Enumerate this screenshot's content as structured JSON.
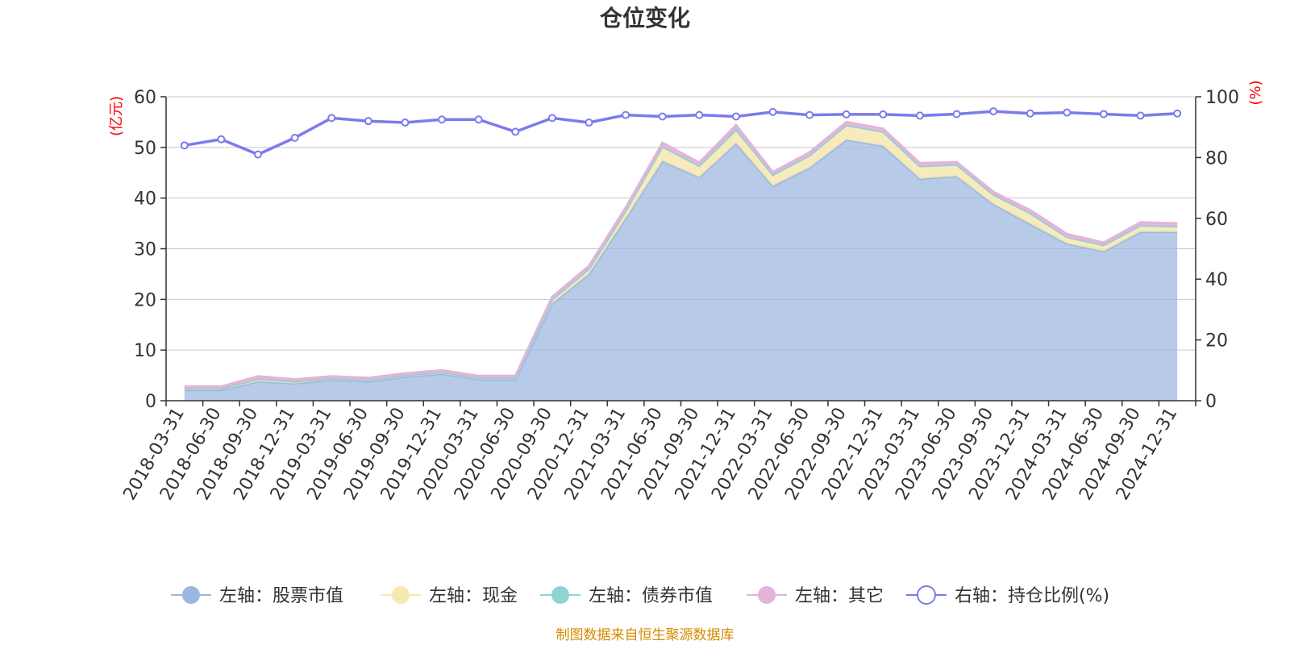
{
  "title": "仓位变化",
  "source_note": "制图数据来自恒生聚源数据库",
  "left_unit": "(亿元)",
  "right_unit": "(%)",
  "colors": {
    "stock": "#9bb7df",
    "cash": "#f6e8b1",
    "bond": "#8fd3d3",
    "other": "#e4b3da",
    "ratio": "#7b7bee",
    "unit": "#ff0000",
    "source": "#d48b00",
    "grid": "#c8c8c8",
    "axis": "#333333"
  },
  "legend": [
    {
      "key": "stock",
      "label": "左轴：股票市值"
    },
    {
      "key": "cash",
      "label": "左轴：现金"
    },
    {
      "key": "bond",
      "label": "左轴：债券市值"
    },
    {
      "key": "other",
      "label": "左轴：其它"
    },
    {
      "key": "ratio",
      "label": "右轴：持仓比例(%)"
    }
  ],
  "chart_data": {
    "type": "area",
    "title": "仓位变化",
    "categories": [
      "2018-03-31",
      "2018-06-30",
      "2018-09-30",
      "2018-12-31",
      "2019-03-31",
      "2019-06-30",
      "2019-09-30",
      "2019-12-31",
      "2020-03-31",
      "2020-06-30",
      "2020-09-30",
      "2020-12-31",
      "2021-03-31",
      "2021-06-30",
      "2021-09-30",
      "2021-12-31",
      "2022-03-31",
      "2022-06-30",
      "2022-09-30",
      "2022-12-31",
      "2023-03-31",
      "2023-06-30",
      "2023-09-30",
      "2023-12-31",
      "2024-03-31",
      "2024-06-30",
      "2024-09-30",
      "2024-12-31"
    ],
    "left_axis": {
      "unit": "亿元",
      "ylim": [
        0,
        60
      ],
      "ticks": [
        0,
        10,
        20,
        30,
        40,
        50,
        60
      ]
    },
    "right_axis": {
      "unit": "%",
      "ylim": [
        0,
        100
      ],
      "ticks": [
        0,
        20,
        40,
        60,
        80,
        100
      ]
    },
    "stacked": true,
    "grid": true,
    "legend_position": "bottom",
    "series": [
      {
        "key": "stock",
        "name": "左轴：股票市值",
        "axis": "left",
        "values": [
          2.1,
          2.1,
          3.8,
          3.4,
          4.1,
          3.8,
          4.7,
          5.3,
          4.2,
          4.2,
          19.2,
          25.0,
          36.0,
          47.3,
          44.1,
          50.8,
          42.4,
          46.0,
          51.5,
          50.3,
          43.8,
          44.3,
          38.8,
          34.9,
          31.0,
          29.5,
          33.3,
          33.3
        ]
      },
      {
        "key": "cash",
        "name": "左轴：现金",
        "axis": "left",
        "values": [
          0.3,
          0.3,
          0.5,
          0.4,
          0.3,
          0.3,
          0.3,
          0.3,
          0.3,
          0.3,
          0.8,
          1.0,
          1.5,
          2.6,
          2.0,
          2.3,
          2.2,
          2.4,
          2.9,
          2.8,
          2.5,
          2.3,
          1.9,
          2.1,
          1.3,
          1.2,
          1.3,
          1.1
        ]
      },
      {
        "key": "bond",
        "name": "左轴：债券市值",
        "axis": "left",
        "values": [
          0,
          0,
          0,
          0,
          0,
          0,
          0,
          0,
          0,
          0,
          0,
          0,
          0,
          0.3,
          0.3,
          0.6,
          0,
          0,
          0,
          0,
          0,
          0,
          0,
          0,
          0,
          0,
          0,
          0
        ]
      },
      {
        "key": "other",
        "name": "左轴：其它",
        "axis": "left",
        "values": [
          0.4,
          0.4,
          0.5,
          0.4,
          0.4,
          0.4,
          0.4,
          0.4,
          0.4,
          0.4,
          0.5,
          0.6,
          0.6,
          0.7,
          0.6,
          0.7,
          0.5,
          0.6,
          0.6,
          0.6,
          0.6,
          0.5,
          0.5,
          0.6,
          0.6,
          0.5,
          0.6,
          0.6
        ]
      },
      {
        "key": "ratio",
        "name": "右轴：持仓比例(%)",
        "axis": "right",
        "type": "line",
        "values": [
          84,
          86,
          81,
          86.5,
          93,
          92,
          91.5,
          92.5,
          92.5,
          88.5,
          93,
          91.5,
          94,
          93.5,
          94,
          93.5,
          95,
          94,
          94.2,
          94.2,
          93.8,
          94.3,
          95.2,
          94.5,
          94.8,
          94.3,
          93.8,
          94.5
        ]
      }
    ]
  }
}
